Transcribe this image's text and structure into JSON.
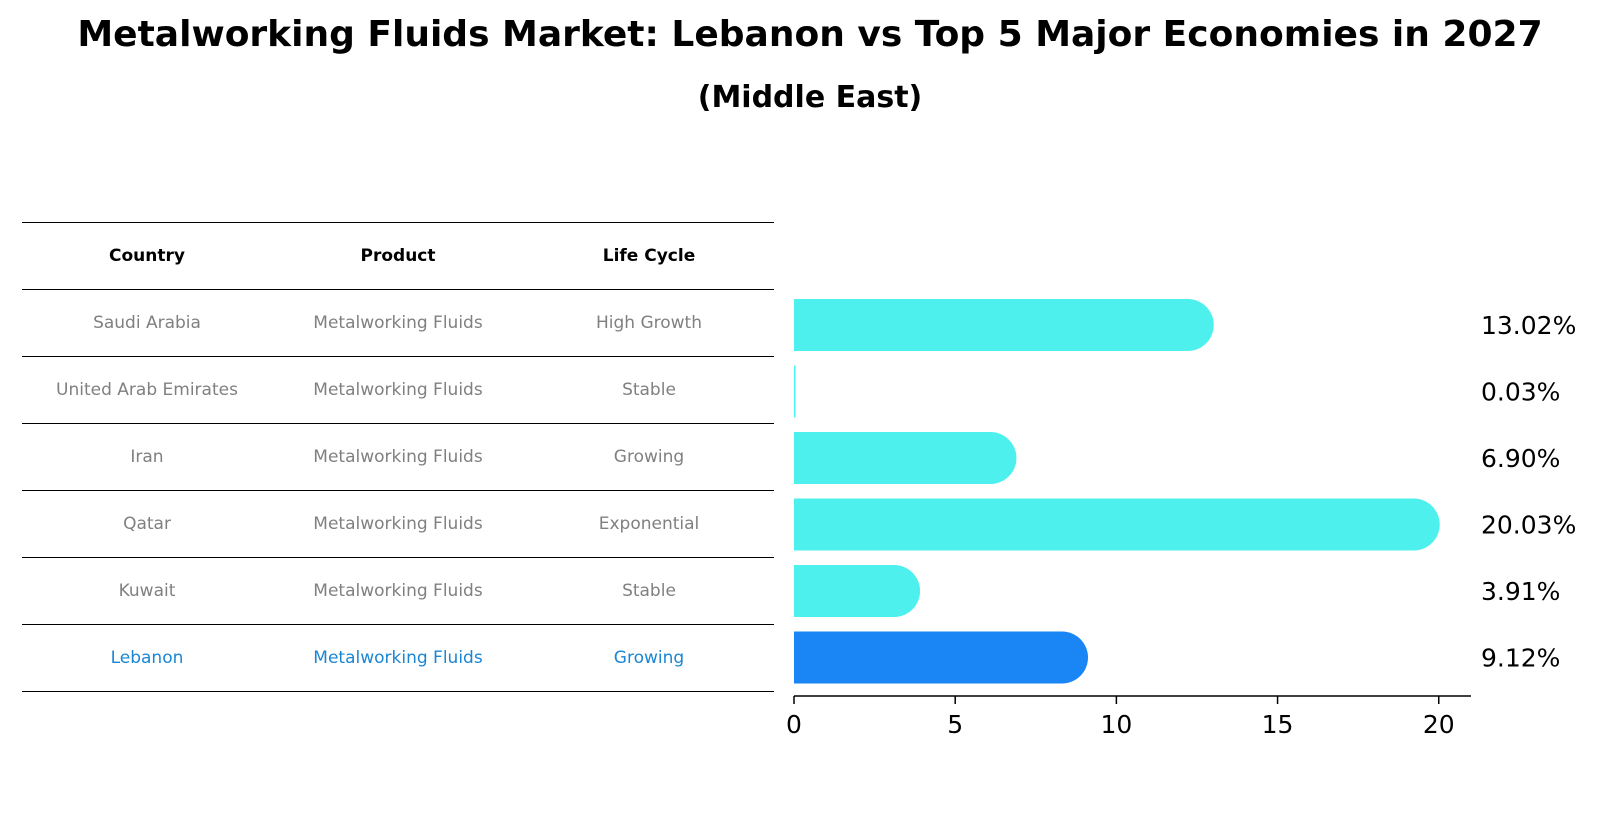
{
  "title": "Metalworking Fluids Market: Lebanon vs Top 5 Major Economies in 2027",
  "subtitle": "(Middle East)",
  "table": {
    "headers": [
      "Country",
      "Product",
      "Life Cycle"
    ],
    "rows": [
      [
        "Saudi Arabia",
        "Metalworking Fluids",
        "High Growth"
      ],
      [
        "United Arab Emirates",
        "Metalworking Fluids",
        "Stable"
      ],
      [
        "Iran",
        "Metalworking Fluids",
        "Growing"
      ],
      [
        "Qatar",
        "Metalworking Fluids",
        "Exponential"
      ],
      [
        "Kuwait",
        "Metalworking Fluids",
        "Stable"
      ],
      [
        "Lebanon",
        "Metalworking Fluids",
        "Growing"
      ]
    ],
    "highlight_row": 5
  },
  "chart_data": {
    "type": "bar",
    "orientation": "horizontal",
    "categories": [
      "Saudi Arabia",
      "United Arab Emirates",
      "Iran",
      "Qatar",
      "Kuwait",
      "Lebanon"
    ],
    "values": [
      13.02,
      0.03,
      6.9,
      20.03,
      3.91,
      9.12
    ],
    "value_labels": [
      "13.02%",
      "0.03%",
      "6.90%",
      "20.03%",
      "3.91%",
      "9.12%"
    ],
    "xlim": [
      0,
      21
    ],
    "xticks": [
      0,
      5,
      10,
      15,
      20
    ],
    "xtick_labels": [
      "0",
      "5",
      "10",
      "15",
      "20"
    ],
    "colors": {
      "default": "#4ef0ed",
      "highlight": "#1a86f5"
    },
    "highlight_index": 5,
    "grid": false
  }
}
